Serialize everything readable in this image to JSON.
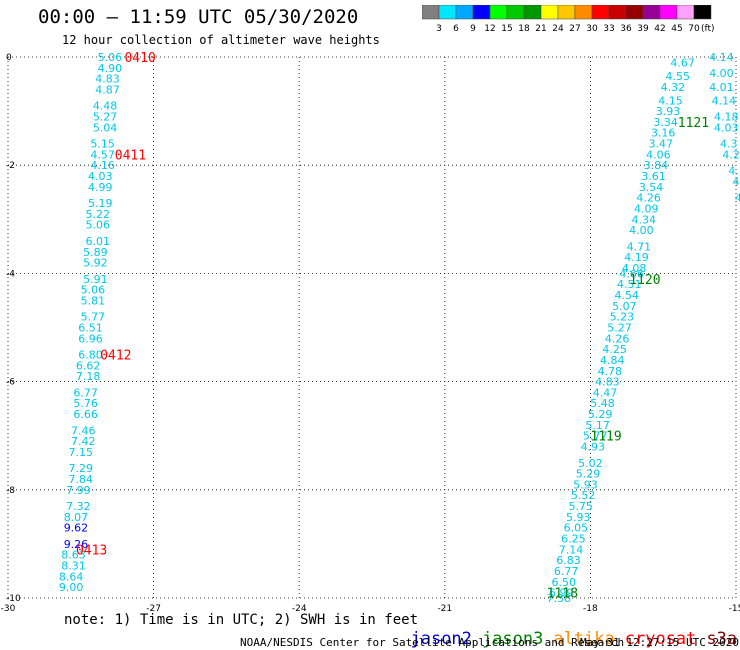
{
  "title": "00:00 – 11:59 UTC 05/30/2020",
  "subtitle": "12 hour collection of altimeter wave heights",
  "colorbar": {
    "unit": "(ft)",
    "ticks": [
      "3",
      "6",
      "9",
      "12",
      "15",
      "18",
      "21",
      "24",
      "27",
      "30",
      "33",
      "36",
      "39",
      "42",
      "45",
      "70"
    ],
    "colors": [
      "#808080",
      "#00e5ff",
      "#00a8ff",
      "#0000ff",
      "#00ff00",
      "#00c800",
      "#009600",
      "#ffff00",
      "#ffc800",
      "#ff8c00",
      "#ff0000",
      "#c80000",
      "#960000",
      "#960096",
      "#ff00ff",
      "#ffa0ff",
      "#000000"
    ]
  },
  "note": "note: 1) Time is in UTC; 2) SWH is in feet",
  "satellites": [
    {
      "name": "jason2",
      "color": "#0000cc"
    },
    {
      "name": "jason3",
      "color": "#008000"
    },
    {
      "name": "altika",
      "color": "#ff8c00"
    },
    {
      "name": "cryosat",
      "color": "#ff0000"
    },
    {
      "name": "s3a",
      "color": "#800000"
    }
  ],
  "credit": "NOAA/NESDIS Center for Satellite Applications and Research",
  "timestamp": "May 31 12:27:15 UTC 2020",
  "chart_data": {
    "type": "scatter",
    "xlim": [
      -30,
      -15
    ],
    "ylim": [
      -10,
      0
    ],
    "x_ticks": [
      "-30",
      "-27",
      "-24",
      "-21",
      "-18",
      "-15"
    ],
    "y_ticks": [
      "0",
      "-2",
      "-4",
      "-6",
      "-8",
      "-10"
    ],
    "grid": true,
    "series": [
      {
        "name": "cryosat",
        "text_color": "#ff0000",
        "value_color": "#00c8e6",
        "time_labels": [
          {
            "label": "0410",
            "x": -27.6,
            "y": 0
          },
          {
            "label": "0411",
            "x": -27.8,
            "y": -1.8
          },
          {
            "label": "0412",
            "x": -28.1,
            "y": -5.5
          },
          {
            "label": "0413",
            "x": -28.6,
            "y": -9.1
          }
        ],
        "points": [
          {
            "x": -27.9,
            "y": 0.0,
            "v": "5.06"
          },
          {
            "x": -27.9,
            "y": -0.2,
            "v": "4.90"
          },
          {
            "x": -27.95,
            "y": -0.4,
            "v": "4.83"
          },
          {
            "x": -27.95,
            "y": -0.6,
            "v": "4.87"
          },
          {
            "x": -28.0,
            "y": -0.9,
            "v": "4.48"
          },
          {
            "x": -28.0,
            "y": -1.1,
            "v": "5.27"
          },
          {
            "x": -28.0,
            "y": -1.3,
            "v": "5.04"
          },
          {
            "x": -28.05,
            "y": -1.6,
            "v": "5.15"
          },
          {
            "x": -28.05,
            "y": -1.8,
            "v": "4.57"
          },
          {
            "x": -28.05,
            "y": -2.0,
            "v": "4.16"
          },
          {
            "x": -28.1,
            "y": -2.2,
            "v": "4.03"
          },
          {
            "x": -28.1,
            "y": -2.4,
            "v": "4.99"
          },
          {
            "x": -28.1,
            "y": -2.7,
            "v": "5.19"
          },
          {
            "x": -28.15,
            "y": -2.9,
            "v": "5.22"
          },
          {
            "x": -28.15,
            "y": -3.1,
            "v": "5.06"
          },
          {
            "x": -28.15,
            "y": -3.4,
            "v": "6.01"
          },
          {
            "x": -28.2,
            "y": -3.6,
            "v": "5.89"
          },
          {
            "x": -28.2,
            "y": -3.8,
            "v": "5.92"
          },
          {
            "x": -28.2,
            "y": -4.1,
            "v": "5.91"
          },
          {
            "x": -28.25,
            "y": -4.3,
            "v": "5.06"
          },
          {
            "x": -28.25,
            "y": -4.5,
            "v": "5.81"
          },
          {
            "x": -28.25,
            "y": -4.8,
            "v": "5.77"
          },
          {
            "x": -28.3,
            "y": -5.0,
            "v": "6.51"
          },
          {
            "x": -28.3,
            "y": -5.2,
            "v": "6.96"
          },
          {
            "x": -28.3,
            "y": -5.5,
            "v": "6.80"
          },
          {
            "x": -28.35,
            "y": -5.7,
            "v": "6.62"
          },
          {
            "x": -28.35,
            "y": -5.9,
            "v": "7.18"
          },
          {
            "x": -28.4,
            "y": -6.2,
            "v": "6.77"
          },
          {
            "x": -28.4,
            "y": -6.4,
            "v": "5.76"
          },
          {
            "x": -28.4,
            "y": -6.6,
            "v": "6.66"
          },
          {
            "x": -28.45,
            "y": -6.9,
            "v": "7.46"
          },
          {
            "x": -28.45,
            "y": -7.1,
            "v": "7.42"
          },
          {
            "x": -28.5,
            "y": -7.3,
            "v": "7.15"
          },
          {
            "x": -28.5,
            "y": -7.6,
            "v": "7.29"
          },
          {
            "x": -28.5,
            "y": -7.8,
            "v": "7.84"
          },
          {
            "x": -28.55,
            "y": -8.0,
            "v": "7.99"
          },
          {
            "x": -28.55,
            "y": -8.3,
            "v": "7.32"
          },
          {
            "x": -28.6,
            "y": -8.5,
            "v": "8.07"
          },
          {
            "x": -28.6,
            "y": -8.7,
            "v": "9.62",
            "color": "#0000ff"
          },
          {
            "x": -28.6,
            "y": -9.0,
            "v": "9.26",
            "color": "#0000ff"
          },
          {
            "x": -28.65,
            "y": -9.2,
            "v": "8.63"
          },
          {
            "x": -28.65,
            "y": -9.4,
            "v": "8.31"
          },
          {
            "x": -28.7,
            "y": -9.6,
            "v": "8.64"
          },
          {
            "x": -28.7,
            "y": -9.8,
            "v": "9.00"
          }
        ]
      },
      {
        "name": "jason3",
        "text_color": "#008000",
        "value_color": "#00c8e6",
        "time_labels": [
          {
            "label": "1121",
            "x": -16.2,
            "y": -1.2
          },
          {
            "label": "1120",
            "x": -17.2,
            "y": -4.1
          },
          {
            "label": "1119",
            "x": -18.0,
            "y": -7.0
          },
          {
            "label": "1118",
            "x": -18.9,
            "y": -9.9
          }
        ],
        "points": [
          {
            "x": -16.1,
            "y": -0.1,
            "v": "4.67"
          },
          {
            "x": -16.2,
            "y": -0.35,
            "v": "4.55"
          },
          {
            "x": -16.3,
            "y": -0.55,
            "v": "4.32"
          },
          {
            "x": -16.35,
            "y": -0.8,
            "v": "4.15"
          },
          {
            "x": -16.4,
            "y": -1.0,
            "v": "3.93"
          },
          {
            "x": -16.45,
            "y": -1.2,
            "v": "3.34"
          },
          {
            "x": -16.5,
            "y": -1.4,
            "v": "3.16"
          },
          {
            "x": -16.55,
            "y": -1.6,
            "v": "3.47"
          },
          {
            "x": -16.6,
            "y": -1.8,
            "v": "4.06"
          },
          {
            "x": -16.65,
            "y": -2.0,
            "v": "3.84"
          },
          {
            "x": -16.7,
            "y": -2.2,
            "v": "3.61"
          },
          {
            "x": -16.75,
            "y": -2.4,
            "v": "3.54"
          },
          {
            "x": -16.8,
            "y": -2.6,
            "v": "4.26"
          },
          {
            "x": -16.85,
            "y": -2.8,
            "v": "4.09"
          },
          {
            "x": -16.9,
            "y": -3.0,
            "v": "4.34"
          },
          {
            "x": -16.95,
            "y": -3.2,
            "v": "4.00"
          },
          {
            "x": -17.0,
            "y": -3.5,
            "v": "4.71"
          },
          {
            "x": -17.05,
            "y": -3.7,
            "v": "4.19"
          },
          {
            "x": -17.1,
            "y": -3.9,
            "v": "4.08"
          },
          {
            "x": -17.15,
            "y": -4.0,
            "v": "4.66"
          },
          {
            "x": -17.2,
            "y": -4.2,
            "v": "4.51"
          },
          {
            "x": -17.25,
            "y": -4.4,
            "v": "4.54"
          },
          {
            "x": -17.3,
            "y": -4.6,
            "v": "5.07"
          },
          {
            "x": -17.35,
            "y": -4.8,
            "v": "5.23"
          },
          {
            "x": -17.4,
            "y": -5.0,
            "v": "5.27"
          },
          {
            "x": -17.45,
            "y": -5.2,
            "v": "4.26"
          },
          {
            "x": -17.5,
            "y": -5.4,
            "v": "4.25"
          },
          {
            "x": -17.55,
            "y": -5.6,
            "v": "4.84"
          },
          {
            "x": -17.6,
            "y": -5.8,
            "v": "4.78"
          },
          {
            "x": -17.65,
            "y": -6.0,
            "v": "4.83"
          },
          {
            "x": -17.7,
            "y": -6.2,
            "v": "4.47"
          },
          {
            "x": -17.75,
            "y": -6.4,
            "v": "5.48"
          },
          {
            "x": -17.8,
            "y": -6.6,
            "v": "5.29"
          },
          {
            "x": -17.85,
            "y": -6.8,
            "v": "5.17"
          },
          {
            "x": -17.9,
            "y": -7.0,
            "v": "5.77"
          },
          {
            "x": -17.95,
            "y": -7.2,
            "v": "4.93"
          },
          {
            "x": -18.0,
            "y": -7.5,
            "v": "5.02"
          },
          {
            "x": -18.05,
            "y": -7.7,
            "v": "5.29"
          },
          {
            "x": -18.1,
            "y": -7.9,
            "v": "5.93"
          },
          {
            "x": -18.15,
            "y": -8.1,
            "v": "5.52"
          },
          {
            "x": -18.2,
            "y": -8.3,
            "v": "5.75"
          },
          {
            "x": -18.25,
            "y": -8.5,
            "v": "5.93"
          },
          {
            "x": -18.3,
            "y": -8.7,
            "v": "6.05"
          },
          {
            "x": -18.35,
            "y": -8.9,
            "v": "6.25"
          },
          {
            "x": -18.4,
            "y": -9.1,
            "v": "7.14"
          },
          {
            "x": -18.45,
            "y": -9.3,
            "v": "6.83"
          },
          {
            "x": -18.5,
            "y": -9.5,
            "v": "6.77"
          },
          {
            "x": -18.55,
            "y": -9.7,
            "v": "6.50"
          },
          {
            "x": -18.6,
            "y": -9.9,
            "v": "6.99"
          },
          {
            "x": -18.65,
            "y": -10.0,
            "v": "7.38"
          }
        ]
      },
      {
        "name": "jason3-edge",
        "text_color": "#008000",
        "value_color": "#00c8e6",
        "time_labels": [],
        "points": [
          {
            "x": -15.3,
            "y": 0.0,
            "v": "4.14"
          },
          {
            "x": -15.3,
            "y": -0.3,
            "v": "4.00"
          },
          {
            "x": -15.3,
            "y": -0.55,
            "v": "4.01"
          },
          {
            "x": -15.25,
            "y": -0.8,
            "v": "4.14"
          },
          {
            "x": -15.2,
            "y": -1.1,
            "v": "4.18"
          },
          {
            "x": -15.2,
            "y": -1.3,
            "v": "4.03"
          },
          {
            "x": -15.15,
            "y": -1.6,
            "v": "4.3"
          },
          {
            "x": -15.1,
            "y": -1.8,
            "v": "4.2"
          },
          {
            "x": -15.05,
            "y": -2.1,
            "v": "4."
          },
          {
            "x": -15.0,
            "y": -2.3,
            "v": "4"
          },
          {
            "x": -14.95,
            "y": -2.6,
            "v": "4"
          }
        ]
      }
    ]
  }
}
